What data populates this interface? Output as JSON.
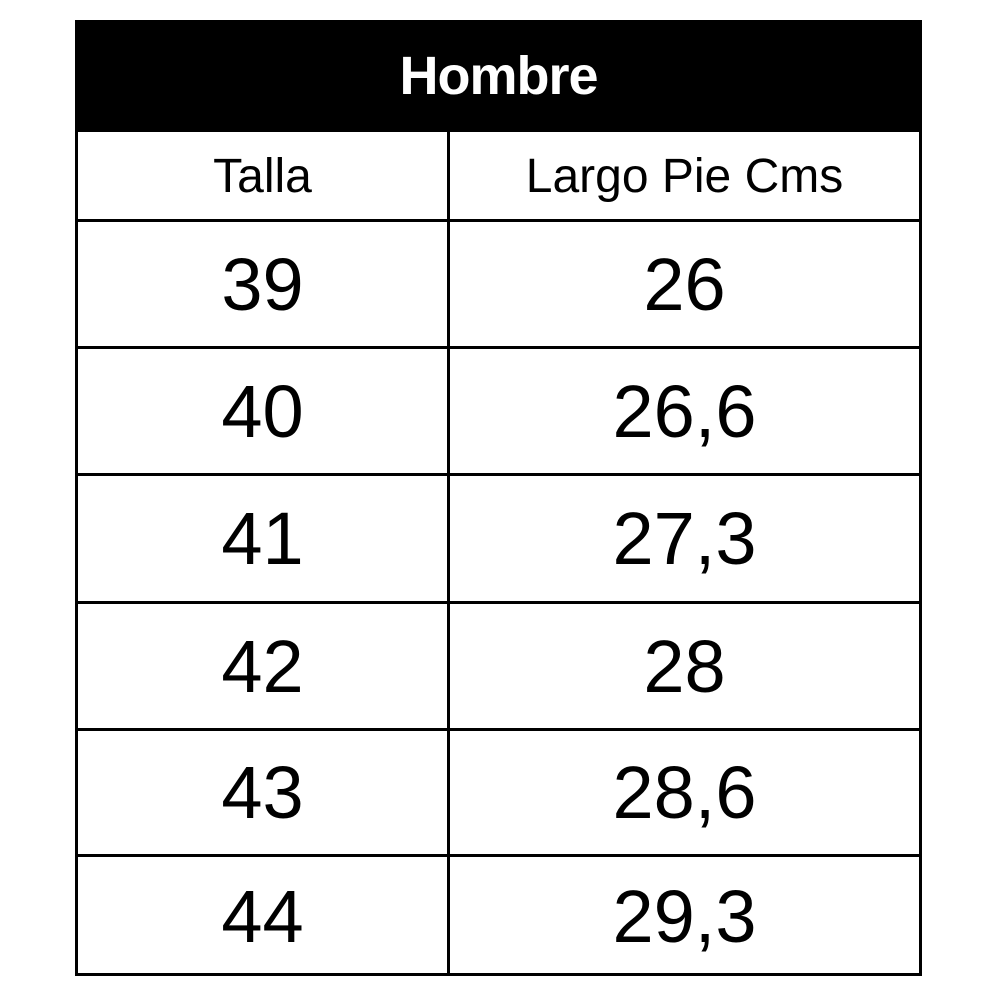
{
  "title": "Hombre",
  "columns": [
    "Talla",
    "Largo Pie Cms"
  ],
  "rows": [
    [
      "39",
      "26"
    ],
    [
      "40",
      "26,6"
    ],
    [
      "41",
      "27,3"
    ],
    [
      "42",
      "28"
    ],
    [
      "43",
      "28,6"
    ],
    [
      "44",
      "29,3"
    ]
  ]
}
